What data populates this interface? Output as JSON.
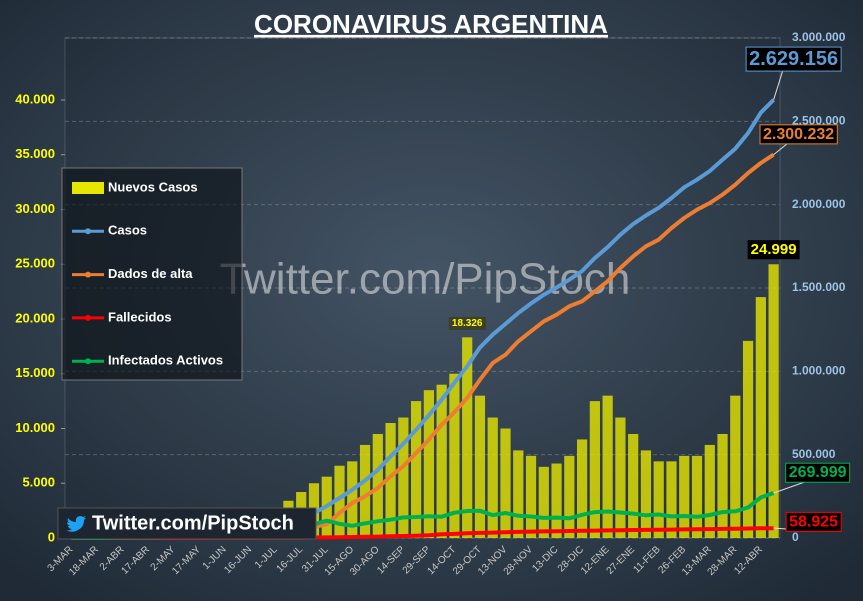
{
  "chart_data": {
    "type": "combo",
    "title": "CORONAVIRUS ARGENTINA",
    "watermark": "Twitter.com/PipStoch",
    "badge": "Twitter.com/PipStoch",
    "legend": "upper left",
    "grid": true,
    "categories": [
      "3-MAR",
      null,
      "18-MAR",
      null,
      "2-ABR",
      null,
      "17-ABR",
      null,
      "2-MAY",
      null,
      "17-MAY",
      null,
      "1-JUN",
      null,
      "16-JUN",
      null,
      "1-JUL",
      null,
      "16-JUL",
      null,
      "31-JUL",
      null,
      "15-AGO",
      null,
      "30-AGO",
      null,
      "14-SEP",
      null,
      "29-SEP",
      null,
      "14-OCT",
      null,
      "29-OCT",
      null,
      "13-NOV",
      null,
      "28-NOV",
      null,
      "13-DIC",
      null,
      "28-DIC",
      null,
      "12-ENE",
      null,
      "27-ENE",
      null,
      "11-FEB",
      null,
      "26-FEB",
      null,
      "13-MAR",
      null,
      "28-MAR",
      null,
      "12-ABR",
      null
    ],
    "ylim": [
      0,
      45660
    ],
    "yticks": [
      0,
      {
        "value": 5000,
        "label": "5.000"
      },
      {
        "value": 10000,
        "label": "10.000"
      },
      {
        "value": 15000,
        "label": "15.000"
      },
      {
        "value": 20000,
        "label": "20.000"
      },
      {
        "value": 25000,
        "label": "25.000"
      },
      {
        "value": 30000,
        "label": "30.000"
      },
      {
        "value": 35000,
        "label": "35.000"
      },
      {
        "value": 40000,
        "label": "40.000"
      }
    ],
    "y2lim": [
      0,
      3000000
    ],
    "y2ticks": [
      0,
      {
        "value": 500000,
        "label": "500.000"
      },
      {
        "value": 1000000,
        "label": "1.000.000"
      },
      {
        "value": 1500000,
        "label": "1.500.000"
      },
      {
        "value": 2000000,
        "label": "2.000.000"
      },
      {
        "value": 2500000,
        "label": "2.500.000"
      },
      {
        "value": 3000000,
        "label": "3.000.000"
      }
    ],
    "series": [
      {
        "name": "Nuevos Casos",
        "type": "bar",
        "color": "#e6e600",
        "values": [
          0,
          0,
          20,
          80,
          100,
          120,
          100,
          150,
          160,
          250,
          450,
          800,
          900,
          1400,
          1900,
          2400,
          2700,
          3400,
          4200,
          5000,
          5600,
          6600,
          7000,
          8500,
          9500,
          10500,
          11000,
          12500,
          13500,
          14000,
          15000,
          18326,
          13000,
          11000,
          10000,
          8000,
          7500,
          6500,
          6800,
          7500,
          9000,
          12500,
          13000,
          11000,
          9500,
          8000,
          7000,
          7000,
          7500,
          7500,
          8500,
          9500,
          13000,
          18000,
          22000,
          24999
        ],
        "value_labels": [
          null,
          null,
          null,
          null,
          null,
          null,
          null,
          null,
          null,
          null,
          null,
          null,
          null,
          null,
          null,
          null,
          null,
          null,
          null,
          null,
          null,
          null,
          null,
          null,
          null,
          null,
          null,
          null,
          null,
          null,
          null,
          "18.326",
          null,
          null,
          null,
          null,
          null,
          null,
          null,
          null,
          null,
          null,
          null,
          null,
          null,
          null,
          null,
          null,
          null,
          null,
          null,
          null,
          null,
          null,
          null,
          "24.999"
        ]
      },
      {
        "name": "Casos",
        "type": "line",
        "axis": "y2",
        "color": "#5b9bd5",
        "values": [
          1,
          12,
          79,
          500,
          1265,
          2100,
          2839,
          3600,
          4532,
          6000,
          7805,
          12000,
          17415,
          25000,
          32785,
          48000,
          67197,
          87000,
          111160,
          150000,
          191302,
          240000,
          289100,
          345000,
          408426,
          490000,
          565446,
          650000,
          736609,
          830000,
          931967,
          1030000,
          1143800,
          1220000,
          1284519,
          1350000,
          1407277,
          1460000,
          1503222,
          1550000,
          1602163,
          1680000,
          1744704,
          1820000,
          1884114,
          1935000,
          1981000,
          2040000,
          2104000,
          2150000,
          2201886,
          2270000,
          2336000,
          2430000,
          2551999,
          2629156
        ],
        "value_labels": [
          null,
          null,
          null,
          null,
          null,
          null,
          null,
          null,
          null,
          null,
          null,
          null,
          null,
          null,
          null,
          null,
          null,
          null,
          null,
          null,
          null,
          null,
          null,
          null,
          null,
          null,
          null,
          null,
          null,
          null,
          null,
          null,
          null,
          null,
          null,
          null,
          null,
          null,
          null,
          null,
          null,
          null,
          null,
          null,
          null,
          null,
          null,
          null,
          null,
          null,
          null,
          null,
          null,
          null,
          null,
          "2.629.156"
        ]
      },
      {
        "name": "Dados de alta",
        "type": "line",
        "axis": "y2",
        "color": "#ed7d31",
        "values": [
          0,
          0,
          3,
          50,
          250,
          500,
          840,
          1100,
          1400,
          1900,
          2700,
          4000,
          5600,
          8000,
          10600,
          16000,
          25000,
          37000,
          48000,
          65000,
          84000,
          150000,
          210000,
          250000,
          300000,
          370000,
          430000,
          510000,
          590000,
          680000,
          755000,
          840000,
          950000,
          1050000,
          1100000,
          1180000,
          1240000,
          1300000,
          1340000,
          1390000,
          1420000,
          1480000,
          1540000,
          1620000,
          1690000,
          1750000,
          1790000,
          1860000,
          1920000,
          1970000,
          2010000,
          2060000,
          2120000,
          2190000,
          2250000,
          2300232
        ],
        "value_labels": [
          null,
          null,
          null,
          null,
          null,
          null,
          null,
          null,
          null,
          null,
          null,
          null,
          null,
          null,
          null,
          null,
          null,
          null,
          null,
          null,
          null,
          null,
          null,
          null,
          null,
          null,
          null,
          null,
          null,
          null,
          null,
          null,
          null,
          null,
          null,
          null,
          null,
          null,
          null,
          null,
          null,
          null,
          null,
          null,
          null,
          null,
          null,
          null,
          null,
          null,
          null,
          null,
          null,
          null,
          null,
          "2.300.232"
        ]
      },
      {
        "name": "Fallecidos",
        "type": "line",
        "axis": "y2",
        "color": "#ff0000",
        "values": [
          0,
          0,
          2,
          8,
          37,
          90,
          132,
          180,
          225,
          300,
          363,
          450,
          556,
          700,
          854,
          1000,
          1351,
          1700,
          2050,
          2800,
          3600,
          4700,
          5700,
          7000,
          8500,
          10100,
          11700,
          13900,
          16500,
          22000,
          24900,
          28000,
          30400,
          32500,
          34700,
          36500,
          38200,
          39500,
          40700,
          41800,
          43000,
          44500,
          45800,
          47000,
          47800,
          48900,
          49800,
          50600,
          51800,
          52600,
          53600,
          54900,
          55900,
          57000,
          58100,
          58925
        ],
        "value_labels": [
          null,
          null,
          null,
          null,
          null,
          null,
          null,
          null,
          null,
          null,
          null,
          null,
          null,
          null,
          null,
          null,
          null,
          null,
          null,
          null,
          null,
          null,
          null,
          null,
          null,
          null,
          null,
          null,
          null,
          null,
          null,
          null,
          null,
          null,
          null,
          null,
          null,
          null,
          null,
          null,
          null,
          null,
          null,
          null,
          null,
          null,
          null,
          null,
          null,
          null,
          null,
          null,
          null,
          null,
          null,
          "58.925"
        ]
      },
      {
        "name": "Infectados Activos",
        "type": "line",
        "axis": "y2",
        "color": "#00b050",
        "values": [
          1,
          12,
          74,
          440,
          978,
          1500,
          1867,
          2300,
          2900,
          3800,
          4742,
          7550,
          11259,
          16300,
          21331,
          31000,
          40846,
          48300,
          61110,
          82200,
          103700,
          85300,
          73400,
          88000,
          99926,
          109900,
          123746,
          126100,
          130109,
          128000,
          152067,
          162000,
          163400,
          137500,
          149819,
          133500,
          129077,
          120500,
          122522,
          118200,
          139163,
          155500,
          158904,
          153000,
          146314,
          136100,
          141200,
          129400,
          132200,
          127400,
          138286,
          155100,
          160100,
          183000,
          243899,
          269999
        ],
        "value_labels": [
          null,
          null,
          null,
          null,
          null,
          null,
          null,
          null,
          null,
          null,
          null,
          null,
          null,
          null,
          null,
          null,
          null,
          null,
          null,
          null,
          null,
          null,
          null,
          null,
          null,
          null,
          null,
          null,
          null,
          null,
          null,
          null,
          null,
          null,
          null,
          null,
          null,
          null,
          null,
          null,
          null,
          null,
          null,
          null,
          null,
          null,
          null,
          null,
          null,
          null,
          null,
          null,
          null,
          null,
          null,
          "269.999"
        ]
      }
    ]
  }
}
